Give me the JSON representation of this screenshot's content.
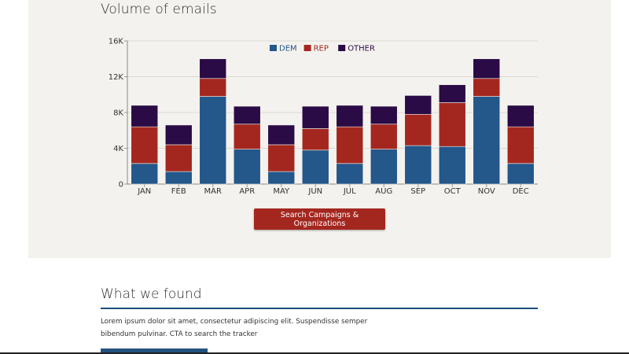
{
  "chart_section": {
    "title": "Volume of emails",
    "button_label": "Search Campaigns & Organizations"
  },
  "colors": {
    "DEM": "#24578a",
    "REP": "#a4271f",
    "OTHER": "#2a0b45",
    "panel_bg": "#f4f2ee",
    "accent_blue": "#1e4d7e"
  },
  "chart_data": {
    "type": "bar",
    "stacked": true,
    "title": "",
    "xlabel": "",
    "ylabel": "",
    "ylim": [
      0,
      16000
    ],
    "yticks": [
      0,
      4000,
      8000,
      12000,
      16000
    ],
    "ytick_labels": [
      "0",
      "4K",
      "8K",
      "12K",
      "16K"
    ],
    "categories": [
      "JAN",
      "FEB",
      "MAR",
      "APR",
      "MAY",
      "JUN",
      "JUL",
      "AUG",
      "SEP",
      "OCT",
      "NOV",
      "DEC"
    ],
    "legend_position": "top-center",
    "grid": true,
    "series": [
      {
        "name": "DEM",
        "values": [
          2300,
          1400,
          9800,
          3900,
          1400,
          3800,
          2300,
          3900,
          4300,
          4200,
          9800,
          2300
        ]
      },
      {
        "name": "REP",
        "values": [
          4100,
          3000,
          2000,
          2800,
          3000,
          2400,
          4100,
          2800,
          3500,
          4900,
          2000,
          4100
        ]
      },
      {
        "name": "OTHER",
        "values": [
          2400,
          2200,
          2200,
          2000,
          2200,
          2500,
          2400,
          2000,
          2100,
          2000,
          2200,
          2400
        ]
      }
    ]
  },
  "found_section": {
    "title": "What we found",
    "text": "Lorem ipsum dolor sit amet, consectetur adipiscing elit. Suspendisse semper bibendum pulvinar. CTA to search the tracker"
  }
}
